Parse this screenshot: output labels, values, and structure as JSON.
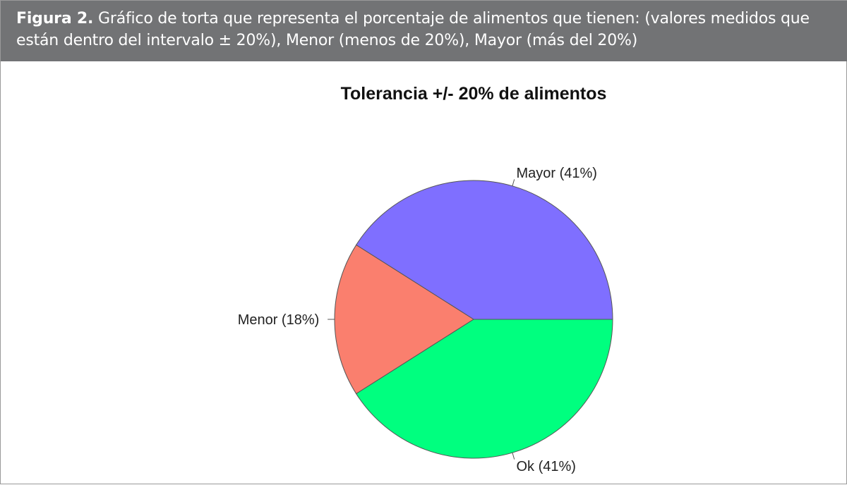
{
  "caption": {
    "label": "Figura 2.",
    "text": "Gráfico de torta que representa el porcentaje de alimentos que tienen: (valores medidos que están dentro del intervalo ± 20%), Menor (menos de 20%), Mayor (más del 20%)"
  },
  "chart_data": {
    "type": "pie",
    "title": "Tolerancia +/- 20% de alimentos",
    "slices": [
      {
        "name": "Mayor",
        "value": 41,
        "label": "Mayor (41%)",
        "color": "#7f6fff"
      },
      {
        "name": "Menor",
        "value": 18,
        "label": "Menor (18%)",
        "color": "#fa7f6e"
      },
      {
        "name": "Ok",
        "value": 41,
        "label": "Ok (41%)",
        "color": "#00ff7f"
      }
    ],
    "start_angle_deg": 0,
    "direction": "counterclockwise",
    "slice_border_color": "#555555"
  }
}
